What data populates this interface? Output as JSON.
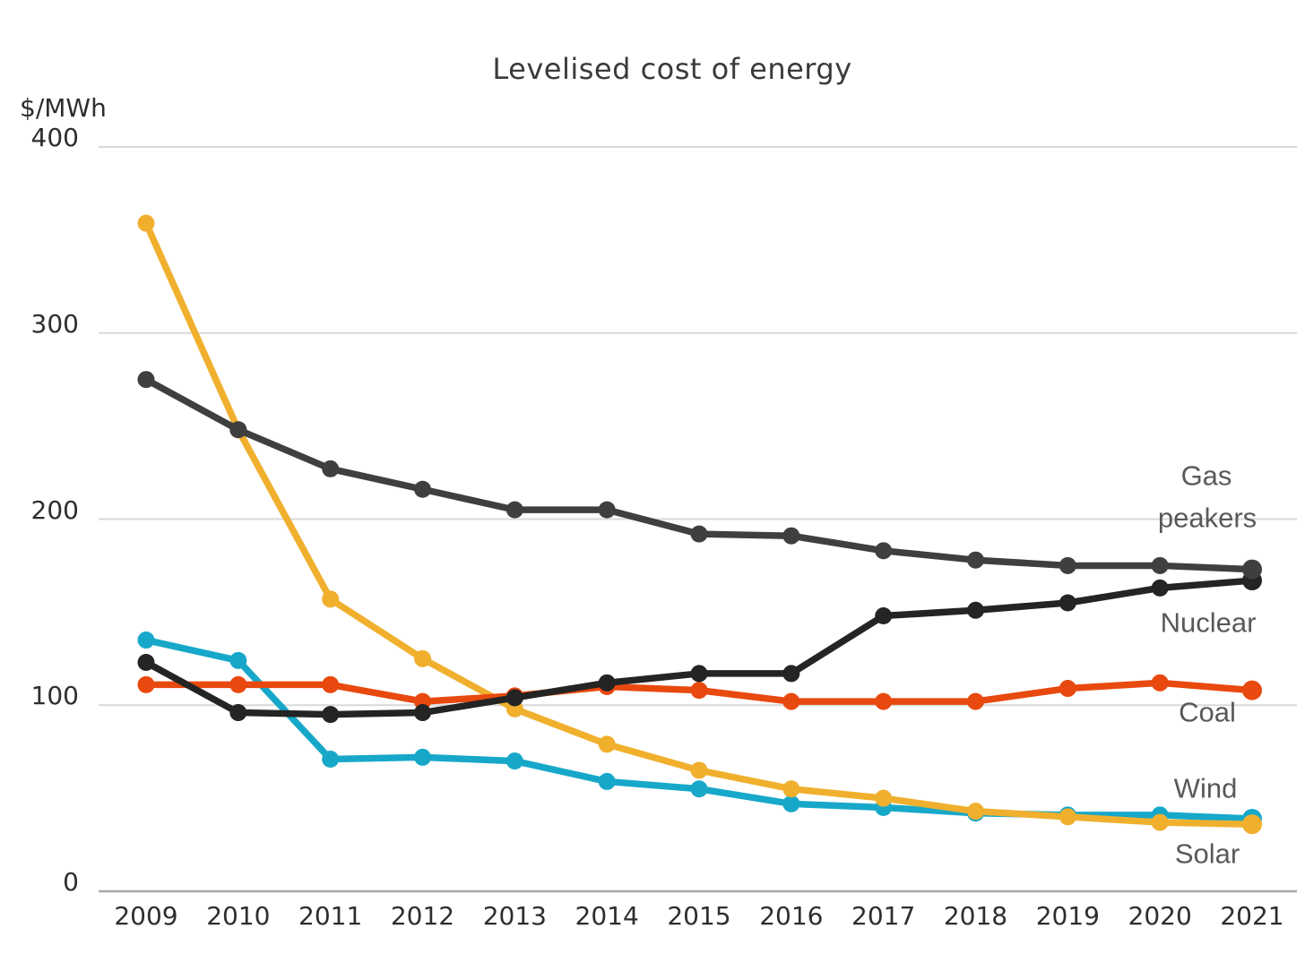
{
  "chart_data": {
    "type": "line",
    "title": "Levelised cost of energy",
    "y_unit_label": "$/MWh",
    "x": [
      2009,
      2010,
      2011,
      2012,
      2013,
      2014,
      2015,
      2016,
      2017,
      2018,
      2019,
      2020,
      2021
    ],
    "ylim": [
      0,
      400
    ],
    "yticks": [
      0,
      100,
      200,
      300,
      400
    ],
    "grid": "horizontal-only",
    "legend_position": "right-inline",
    "colors": {
      "gridline": "#d9d9d9",
      "baseline": "#a8a8a8",
      "title_text": "#3a3a3a",
      "tick_text": "#2e2e2e",
      "legend_text": "#595959"
    },
    "series": [
      {
        "name": "Gas peakers",
        "color": "#3f3f3f",
        "values": [
          275,
          248,
          227,
          216,
          205,
          205,
          192,
          191,
          183,
          178,
          175,
          175,
          173
        ]
      },
      {
        "name": "Nuclear",
        "color": "#242424",
        "values": [
          123,
          96,
          95,
          96,
          104,
          112,
          117,
          117,
          148,
          151,
          155,
          163,
          167
        ]
      },
      {
        "name": "Coal",
        "color": "#e8490f",
        "values": [
          111,
          111,
          111,
          102,
          105,
          110,
          108,
          102,
          102,
          102,
          109,
          112,
          108
        ]
      },
      {
        "name": "Wind",
        "color": "#17a8c9",
        "values": [
          135,
          124,
          71,
          72,
          70,
          59,
          55,
          47,
          45,
          42,
          41,
          41,
          39
        ]
      },
      {
        "name": "Solar",
        "color": "#f0b02e",
        "values": [
          359,
          248,
          157,
          125,
          98,
          79,
          65,
          55,
          50,
          43,
          40,
          37,
          36
        ]
      }
    ]
  }
}
